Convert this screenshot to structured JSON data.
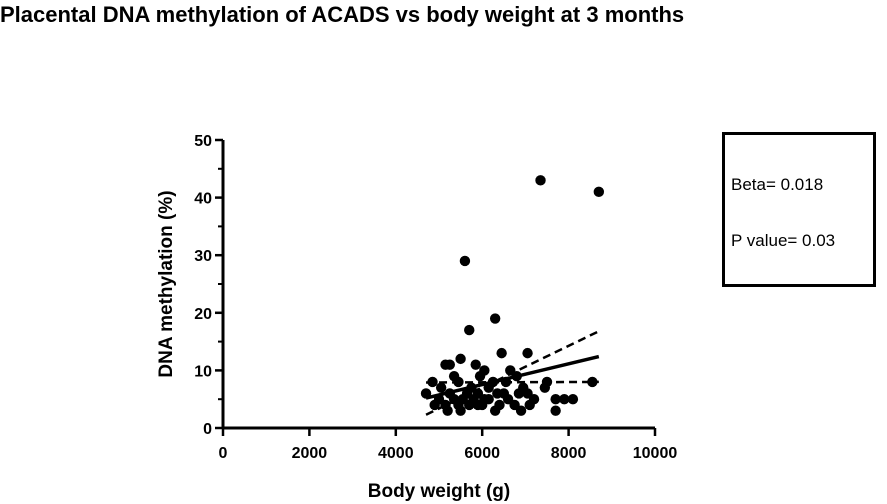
{
  "title": "Placental DNA methylation of ACADS vs body weight at 3 months",
  "stats": {
    "beta": "Beta= 0.018",
    "p_value": "P value= 0.03"
  },
  "chart_data": {
    "type": "scatter",
    "title": "Placental DNA methylation of ACADS vs body weight at 3 months",
    "xlabel": "Body weight (g)",
    "ylabel": "DNA methylation (%)",
    "xlim": [
      0,
      10000
    ],
    "ylim": [
      0,
      50
    ],
    "xticks": [
      0,
      2000,
      4000,
      6000,
      8000,
      10000
    ],
    "yticks": [
      0,
      10,
      20,
      30,
      40,
      50
    ],
    "grid": false,
    "points": [
      {
        "x": 7350,
        "y": 43
      },
      {
        "x": 8700,
        "y": 41
      },
      {
        "x": 5600,
        "y": 29
      },
      {
        "x": 6300,
        "y": 19
      },
      {
        "x": 5700,
        "y": 17
      },
      {
        "x": 6450,
        "y": 13
      },
      {
        "x": 7050,
        "y": 13
      },
      {
        "x": 5500,
        "y": 12
      },
      {
        "x": 5150,
        "y": 11
      },
      {
        "x": 5250,
        "y": 11
      },
      {
        "x": 5850,
        "y": 11
      },
      {
        "x": 6050,
        "y": 10
      },
      {
        "x": 6650,
        "y": 10
      },
      {
        "x": 6800,
        "y": 9
      },
      {
        "x": 5950,
        "y": 9
      },
      {
        "x": 5350,
        "y": 9
      },
      {
        "x": 6250,
        "y": 8
      },
      {
        "x": 6550,
        "y": 8
      },
      {
        "x": 7500,
        "y": 8
      },
      {
        "x": 8550,
        "y": 8
      },
      {
        "x": 4850,
        "y": 8
      },
      {
        "x": 5450,
        "y": 8
      },
      {
        "x": 5750,
        "y": 7
      },
      {
        "x": 6150,
        "y": 7
      },
      {
        "x": 6950,
        "y": 7
      },
      {
        "x": 7450,
        "y": 7
      },
      {
        "x": 5050,
        "y": 7
      },
      {
        "x": 5650,
        "y": 6
      },
      {
        "x": 6350,
        "y": 6
      },
      {
        "x": 6850,
        "y": 6
      },
      {
        "x": 4700,
        "y": 6
      },
      {
        "x": 5250,
        "y": 6
      },
      {
        "x": 5900,
        "y": 6
      },
      {
        "x": 6500,
        "y": 6
      },
      {
        "x": 7050,
        "y": 6
      },
      {
        "x": 5550,
        "y": 5
      },
      {
        "x": 6050,
        "y": 5
      },
      {
        "x": 6600,
        "y": 5
      },
      {
        "x": 7200,
        "y": 5
      },
      {
        "x": 7700,
        "y": 5
      },
      {
        "x": 7900,
        "y": 5
      },
      {
        "x": 8100,
        "y": 5
      },
      {
        "x": 5000,
        "y": 5
      },
      {
        "x": 5350,
        "y": 5
      },
      {
        "x": 5800,
        "y": 5
      },
      {
        "x": 4900,
        "y": 4
      },
      {
        "x": 5150,
        "y": 4
      },
      {
        "x": 5450,
        "y": 4
      },
      {
        "x": 5700,
        "y": 4
      },
      {
        "x": 6000,
        "y": 4
      },
      {
        "x": 6400,
        "y": 4
      },
      {
        "x": 6750,
        "y": 4
      },
      {
        "x": 7100,
        "y": 4
      },
      {
        "x": 5200,
        "y": 3
      },
      {
        "x": 5500,
        "y": 3
      },
      {
        "x": 6300,
        "y": 3
      },
      {
        "x": 6900,
        "y": 3
      },
      {
        "x": 7700,
        "y": 3
      },
      {
        "x": 5900,
        "y": 4
      },
      {
        "x": 6150,
        "y": 5
      }
    ],
    "fit_line": {
      "x": [
        4700,
        8700
      ],
      "y": [
        5.2,
        12.4
      ]
    },
    "ci_upper": {
      "x": [
        4700,
        8700
      ],
      "y": [
        2.3,
        16.8
      ]
    },
    "ci_lower": {
      "x": [
        4700,
        8700
      ],
      "y": [
        7.9,
        8.0
      ]
    }
  }
}
